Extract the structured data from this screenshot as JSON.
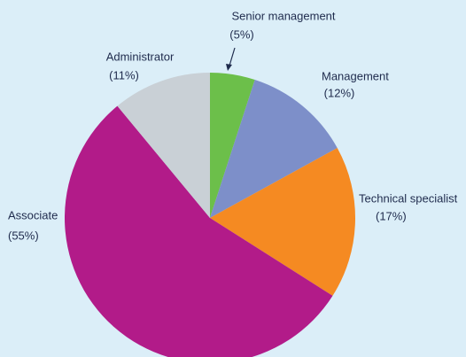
{
  "chart_data": {
    "type": "pie",
    "categories": [
      "Senior management",
      "Management",
      "Technical specialist",
      "Associate",
      "Administrator"
    ],
    "values": [
      5,
      12,
      17,
      55,
      11
    ],
    "value_labels": [
      "(5%)",
      "(12%)",
      "(17%)",
      "(55%)",
      "(11%)"
    ],
    "colors": [
      "#6cbf4a",
      "#7d8fc9",
      "#f58a22",
      "#b21b89",
      "#c9d0d6"
    ]
  }
}
